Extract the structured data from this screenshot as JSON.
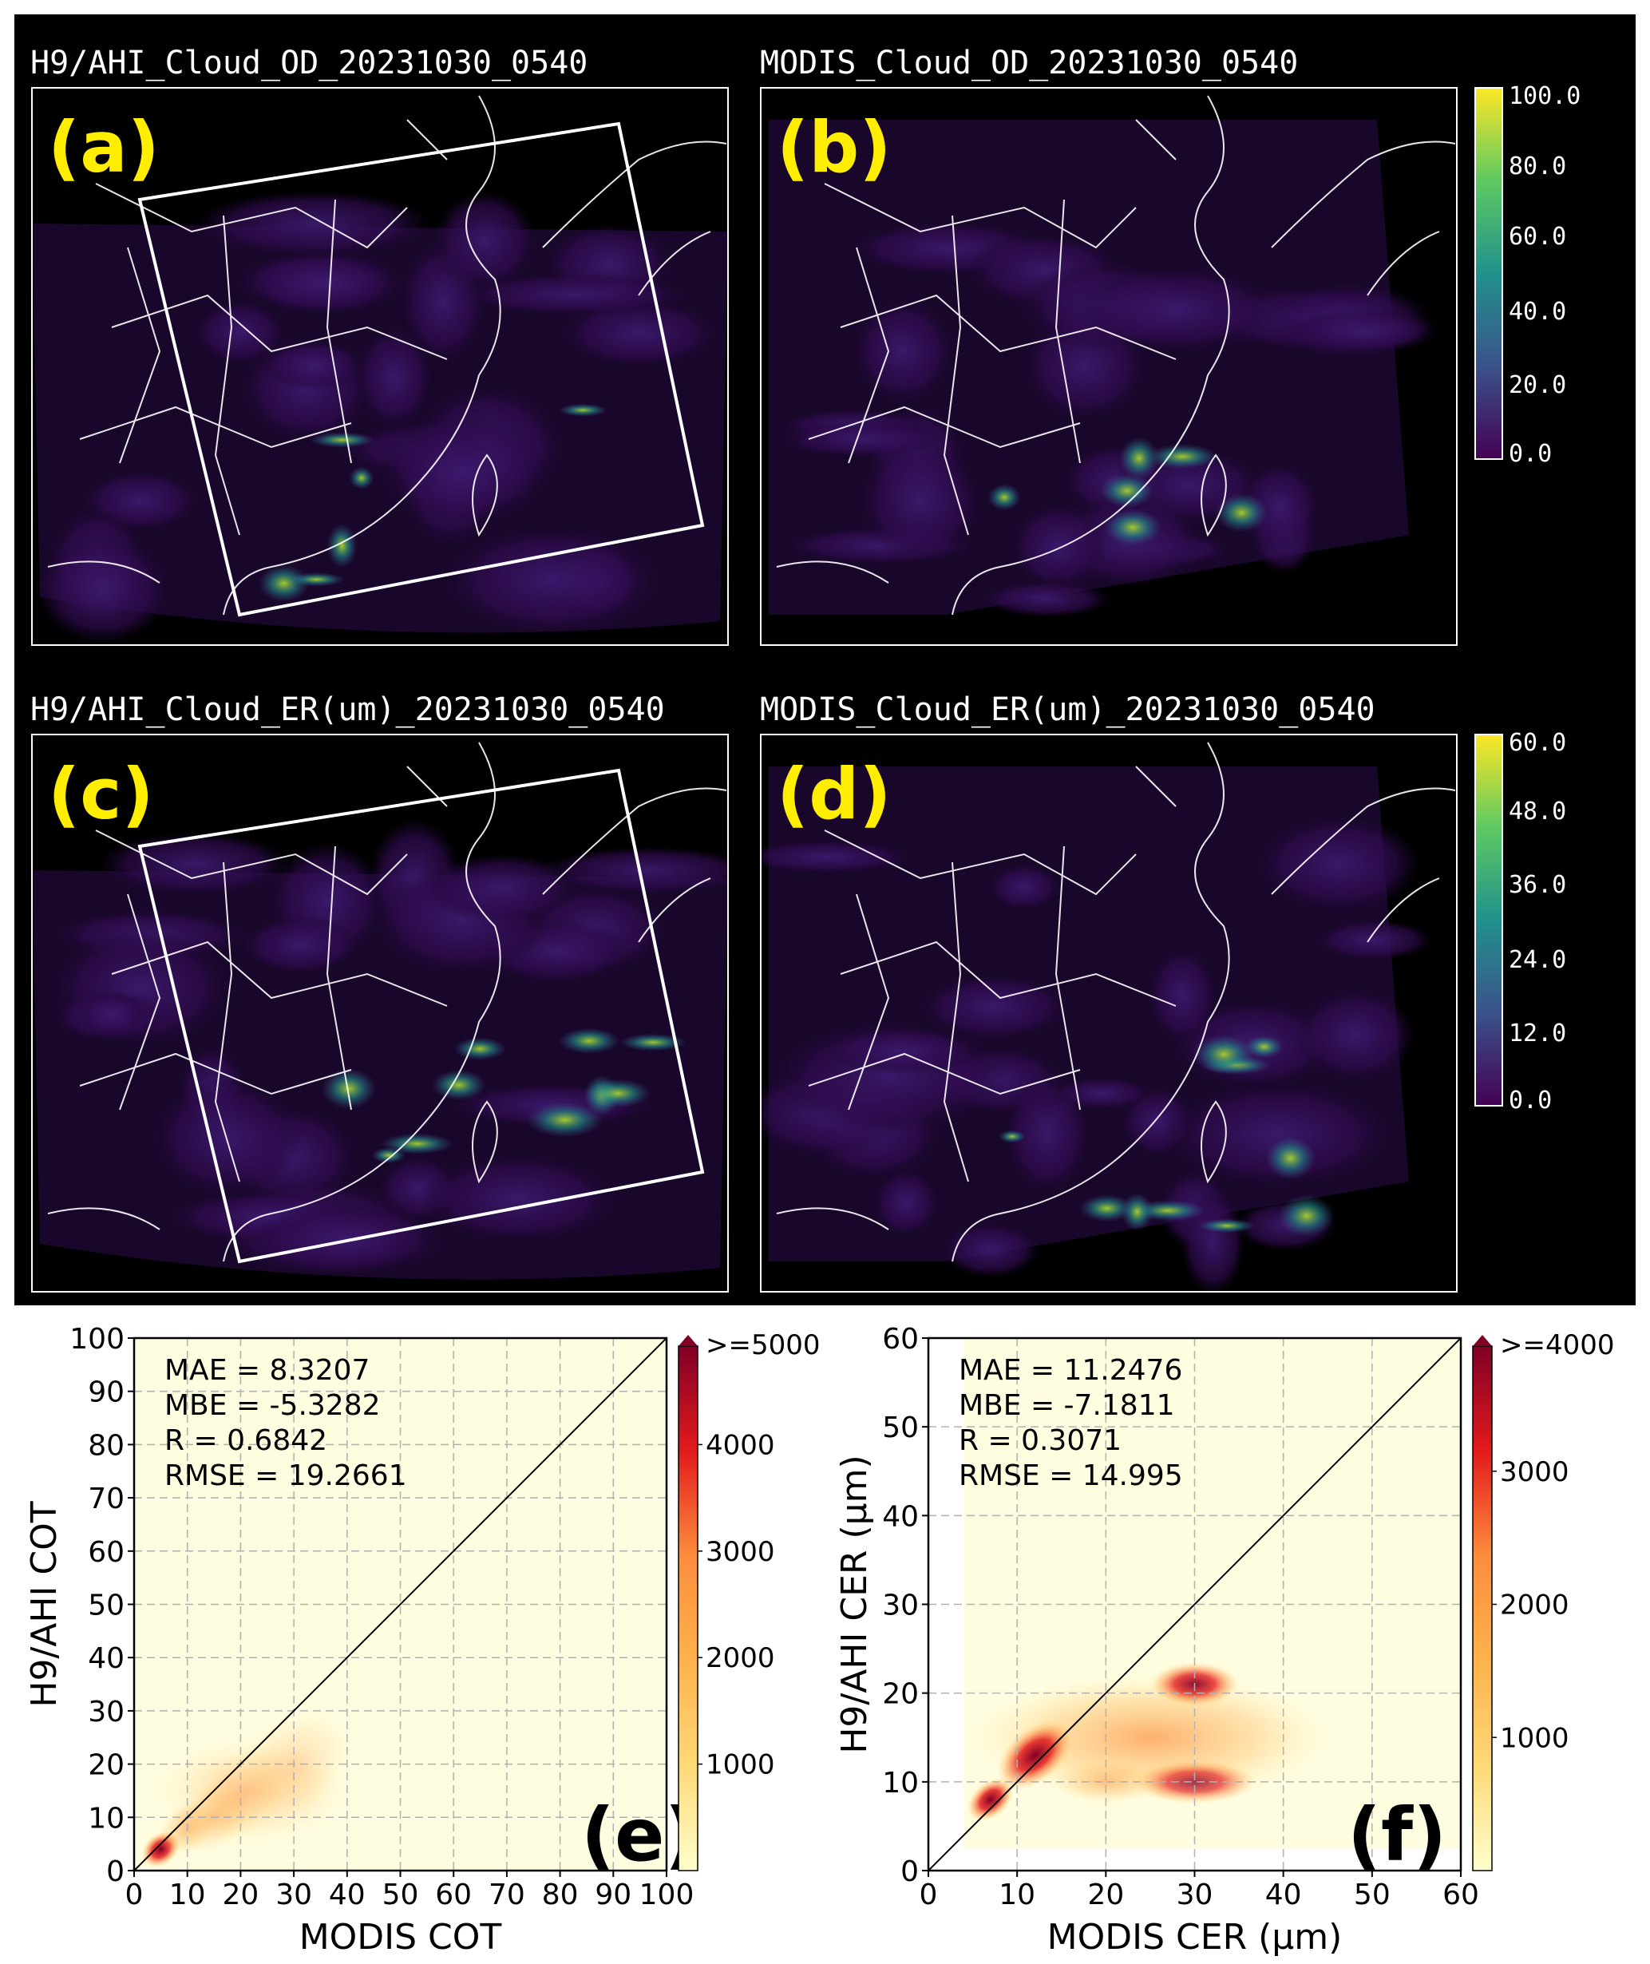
{
  "maps": [
    {
      "id": "a",
      "title": "H9/AHI_Cloud_OD_20231030_0540",
      "letter": "(a)",
      "colormap": "viridis",
      "has_box": true
    },
    {
      "id": "b",
      "title": "MODIS_Cloud_OD_20231030_0540",
      "letter": "(b)",
      "colormap": "viridis",
      "has_box": false
    },
    {
      "id": "c",
      "title": "H9/AHI_Cloud_ER(um)_20231030_0540",
      "letter": "(c)",
      "colormap": "viridis",
      "has_box": true
    },
    {
      "id": "d",
      "title": "MODIS_Cloud_ER(um)_20231030_0540",
      "letter": "(d)",
      "colormap": "viridis",
      "has_box": false
    }
  ],
  "map_colorbars": [
    {
      "ticks": [
        "100.0",
        "80.0",
        "60.0",
        "40.0",
        "20.0",
        "0.0"
      ]
    },
    {
      "ticks": [
        "60.0",
        "48.0",
        "36.0",
        "24.0",
        "12.0",
        "0.0"
      ]
    }
  ],
  "chart_data": [
    {
      "type": "heatmap",
      "panel": "(e)",
      "xlabel": "MODIS COT",
      "ylabel": "H9/AHI COT",
      "xlim": [
        0,
        100
      ],
      "ylim": [
        0,
        100
      ],
      "x_ticks": [
        0,
        10,
        20,
        30,
        40,
        50,
        60,
        70,
        80,
        90,
        100
      ],
      "y_ticks": [
        0,
        10,
        20,
        30,
        40,
        50,
        60,
        70,
        80,
        90,
        100
      ],
      "grid": true,
      "one_to_one_line": true,
      "stats": [
        "MAE = 8.3207",
        "MBE = -5.3282",
        "R = 0.6842",
        "RMSE = 19.2661"
      ],
      "colorbar": {
        "label_top": ">=5000",
        "ticks": [
          1000,
          2000,
          3000,
          4000
        ],
        "max": 5000,
        "colormap": "YlOrRd"
      },
      "density_peaks": [
        {
          "x": 5,
          "y": 4,
          "count": 5000
        },
        {
          "x": 10,
          "y": 8,
          "count": 3000
        },
        {
          "x": 15,
          "y": 10,
          "count": 1500
        },
        {
          "x": 20,
          "y": 14,
          "count": 600
        },
        {
          "x": 30,
          "y": 20,
          "count": 200
        }
      ]
    },
    {
      "type": "heatmap",
      "panel": "(f)",
      "xlabel": "MODIS CER  (μm)",
      "ylabel": "H9/AHI CER  (μm)",
      "xlim": [
        0,
        60
      ],
      "ylim": [
        0,
        60
      ],
      "x_ticks": [
        0,
        10,
        20,
        30,
        40,
        50,
        60
      ],
      "y_ticks": [
        0,
        10,
        20,
        30,
        40,
        50,
        60
      ],
      "grid": true,
      "one_to_one_line": true,
      "stats": [
        "MAE = 11.2476",
        "MBE = -7.1811",
        "R = 0.3071",
        "RMSE = 14.995"
      ],
      "colorbar": {
        "label_top": ">=4000",
        "ticks": [
          1000,
          2000,
          3000
        ],
        "max": 4000,
        "colormap": "YlOrRd"
      },
      "density_peaks": [
        {
          "x": 7,
          "y": 8,
          "count": 4000
        },
        {
          "x": 12,
          "y": 13,
          "count": 4000
        },
        {
          "x": 30,
          "y": 21,
          "count": 3500
        },
        {
          "x": 30,
          "y": 10,
          "count": 2500
        },
        {
          "x": 20,
          "y": 10,
          "count": 2000
        }
      ]
    }
  ]
}
